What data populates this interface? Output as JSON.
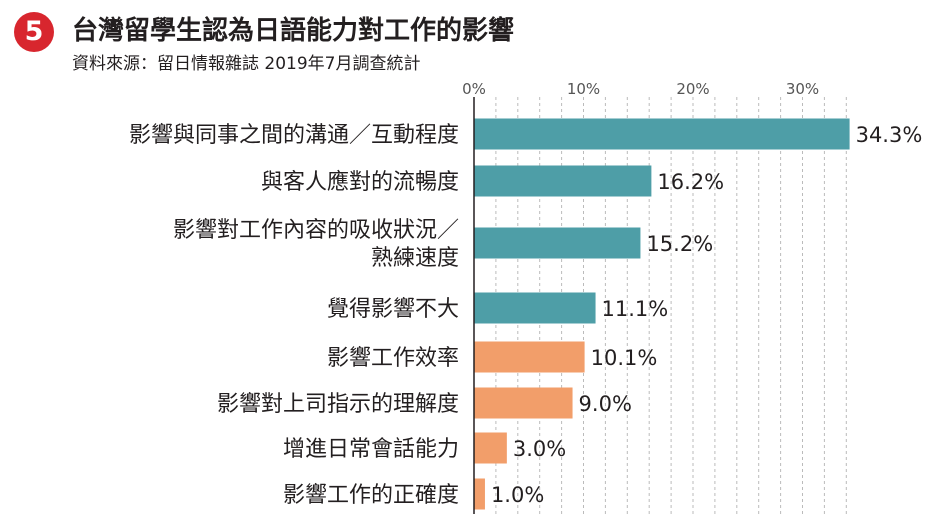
{
  "header": {
    "badge": "5",
    "title": "台灣留學生認為日語能力對工作的影響",
    "source": "資料來源：留日情報雜誌 2019年7月調查統計"
  },
  "colors": {
    "badge": "#d8262e",
    "negative_group": "#4e9ea7",
    "positive_group": "#f29e6a",
    "grid": "#bbbbbb",
    "axis": "#231f20"
  },
  "chart_data": {
    "type": "bar",
    "orientation": "horizontal",
    "title": "台灣留學生認為日語能力對工作的影響",
    "xlabel": "",
    "ylabel": "",
    "xlim": [
      0,
      34.3
    ],
    "ticks": [
      {
        "value": 0,
        "label": "0%"
      },
      {
        "value": 10,
        "label": "10%"
      },
      {
        "value": 20,
        "label": "20%"
      },
      {
        "value": 30,
        "label": "30%"
      }
    ],
    "grid": true,
    "categories": [
      [
        "影響與同事之間的溝通／互動程度"
      ],
      [
        "與客人應對的流暢度"
      ],
      [
        "影響對工作內容的吸收狀況／",
        "熟練速度"
      ],
      [
        "覺得影響不大"
      ],
      [
        "影響工作效率"
      ],
      [
        "影響對上司指示的理解度"
      ],
      [
        "增進日常會話能力"
      ],
      [
        "影響工作的正確度"
      ]
    ],
    "values": [
      34.3,
      16.2,
      15.2,
      11.1,
      10.1,
      9.0,
      3.0,
      1.0
    ],
    "value_labels": [
      "34.3%",
      "16.2%",
      "15.2%",
      "11.1%",
      "10.1%",
      "9.0%",
      "3.0%",
      "1.0%"
    ],
    "bar_colors": [
      "#4e9ea7",
      "#4e9ea7",
      "#4e9ea7",
      "#4e9ea7",
      "#f29e6a",
      "#f29e6a",
      "#f29e6a",
      "#f29e6a"
    ]
  }
}
